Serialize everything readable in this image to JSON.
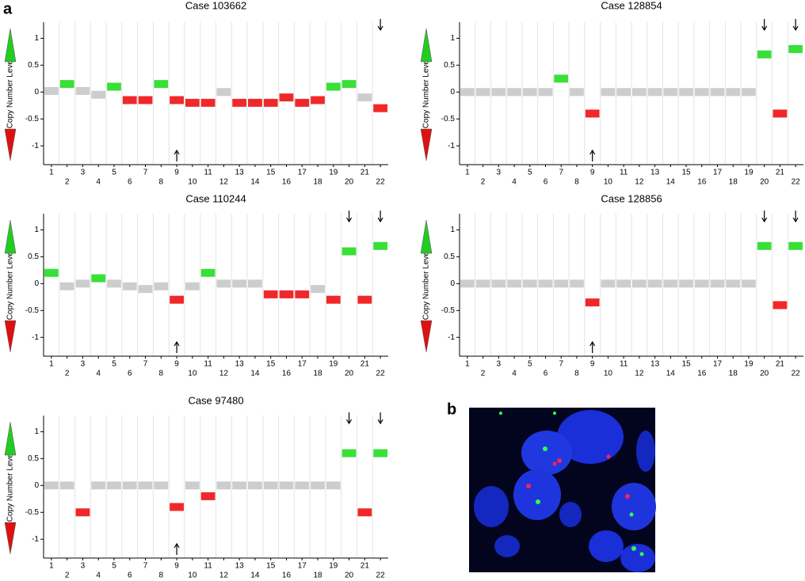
{
  "labels": [
    "a",
    "b"
  ],
  "chart_data": [
    {
      "type": "copy_number",
      "title": "Case 103662",
      "ylabel": "Copy Number Level",
      "categories": [
        "1",
        "2",
        "3",
        "4",
        "5",
        "6",
        "7",
        "8",
        "9",
        "10",
        "11",
        "12",
        "13",
        "14",
        "15",
        "16",
        "17",
        "18",
        "19",
        "20",
        "21",
        "22"
      ],
      "values": [
        0.02,
        0.15,
        0.02,
        -0.05,
        0.1,
        -0.15,
        -0.15,
        0.15,
        -0.15,
        -0.2,
        -0.2,
        0,
        -0.2,
        -0.2,
        -0.2,
        -0.1,
        -0.2,
        -0.15,
        0.1,
        0.15,
        -0.1,
        -0.3
      ],
      "colors": [
        "#c8c8c8",
        "#22dd22",
        "#c8c8c8",
        "#c8c8c8",
        "#22dd22",
        "#ee1111",
        "#ee1111",
        "#22dd22",
        "#ee1111",
        "#ee1111",
        "#ee1111",
        "#c8c8c8",
        "#ee1111",
        "#ee1111",
        "#ee1111",
        "#ee1111",
        "#ee1111",
        "#ee1111",
        "#22dd22",
        "#22dd22",
        "#c8c8c8",
        "#ee1111"
      ],
      "ylim": [
        -1.35,
        1.3
      ],
      "yticks": [
        1,
        0.5,
        0,
        -0.5,
        -1
      ]
    },
    {
      "type": "copy_number",
      "title": "Case 128854",
      "ylabel": "Copy Number Level",
      "categories": [
        "1",
        "2",
        "3",
        "4",
        "5",
        "6",
        "7",
        "8",
        "9",
        "10",
        "11",
        "12",
        "13",
        "14",
        "15",
        "16",
        "17",
        "18",
        "19",
        "20",
        "21",
        "22"
      ],
      "values": [
        0,
        0,
        0,
        0,
        0,
        0,
        0.25,
        0,
        -0.4,
        0,
        0,
        0,
        0,
        0,
        0,
        0,
        0,
        0,
        0,
        0.7,
        -0.4,
        0.8
      ],
      "colors": [
        "#c8c8c8",
        "#c8c8c8",
        "#c8c8c8",
        "#c8c8c8",
        "#c8c8c8",
        "#c8c8c8",
        "#22dd22",
        "#c8c8c8",
        "#ee1111",
        "#c8c8c8",
        "#c8c8c8",
        "#c8c8c8",
        "#c8c8c8",
        "#c8c8c8",
        "#c8c8c8",
        "#c8c8c8",
        "#c8c8c8",
        "#c8c8c8",
        "#c8c8c8",
        "#22dd22",
        "#ee1111",
        "#22dd22"
      ],
      "ylim": [
        -1.35,
        1.3
      ],
      "yticks": [
        1,
        0.5,
        0,
        -0.5,
        -1
      ]
    },
    {
      "type": "copy_number",
      "title": "Case 110244",
      "ylabel": "Copy Number Level",
      "categories": [
        "1",
        "2",
        "3",
        "4",
        "5",
        "6",
        "7",
        "8",
        "9",
        "10",
        "11",
        "12",
        "13",
        "14",
        "15",
        "16",
        "17",
        "18",
        "19",
        "20",
        "21",
        "22"
      ],
      "values": [
        0.2,
        -0.05,
        0,
        0.1,
        0,
        -0.05,
        -0.1,
        -0.05,
        -0.3,
        -0.05,
        0.2,
        0,
        0,
        0,
        -0.2,
        -0.2,
        -0.2,
        -0.1,
        -0.3,
        0.6,
        -0.3,
        0.7
      ],
      "colors": [
        "#22dd22",
        "#c8c8c8",
        "#c8c8c8",
        "#22dd22",
        "#c8c8c8",
        "#c8c8c8",
        "#c8c8c8",
        "#c8c8c8",
        "#ee1111",
        "#c8c8c8",
        "#22dd22",
        "#c8c8c8",
        "#c8c8c8",
        "#c8c8c8",
        "#ee1111",
        "#ee1111",
        "#ee1111",
        "#c8c8c8",
        "#ee1111",
        "#22dd22",
        "#ee1111",
        "#22dd22"
      ],
      "ylim": [
        -1.35,
        1.3
      ],
      "yticks": [
        1,
        0.5,
        0,
        -0.5,
        -1
      ]
    },
    {
      "type": "copy_number",
      "title": "Case 128856",
      "ylabel": "Copy Number Level",
      "categories": [
        "1",
        "2",
        "3",
        "4",
        "5",
        "6",
        "7",
        "8",
        "9",
        "10",
        "11",
        "12",
        "13",
        "14",
        "15",
        "16",
        "17",
        "18",
        "19",
        "20",
        "21",
        "22"
      ],
      "values": [
        0,
        0,
        0,
        0,
        0,
        0,
        0,
        0,
        -0.35,
        0,
        0,
        0,
        0,
        0,
        0,
        0,
        0,
        0,
        0,
        0.7,
        -0.4,
        0.7
      ],
      "colors": [
        "#c8c8c8",
        "#c8c8c8",
        "#c8c8c8",
        "#c8c8c8",
        "#c8c8c8",
        "#c8c8c8",
        "#c8c8c8",
        "#c8c8c8",
        "#ee1111",
        "#c8c8c8",
        "#c8c8c8",
        "#c8c8c8",
        "#c8c8c8",
        "#c8c8c8",
        "#c8c8c8",
        "#c8c8c8",
        "#c8c8c8",
        "#c8c8c8",
        "#c8c8c8",
        "#22dd22",
        "#ee1111",
        "#22dd22"
      ],
      "ylim": [
        -1.35,
        1.3
      ],
      "yticks": [
        1,
        0.5,
        0,
        -0.5,
        -1
      ]
    },
    {
      "type": "copy_number",
      "title": "Case 97480",
      "ylabel": "Copy Number Level",
      "categories": [
        "1",
        "2",
        "3",
        "4",
        "5",
        "6",
        "7",
        "8",
        "9",
        "10",
        "11",
        "12",
        "13",
        "14",
        "15",
        "16",
        "17",
        "18",
        "19",
        "20",
        "21",
        "22"
      ],
      "values": [
        0,
        0,
        -0.5,
        0,
        0,
        0,
        0,
        0,
        -0.4,
        0,
        -0.2,
        0,
        0,
        0,
        0,
        0,
        0,
        0,
        0,
        0.6,
        -0.5,
        0.6
      ],
      "colors": [
        "#c8c8c8",
        "#c8c8c8",
        "#ee1111",
        "#c8c8c8",
        "#c8c8c8",
        "#c8c8c8",
        "#c8c8c8",
        "#c8c8c8",
        "#ee1111",
        "#c8c8c8",
        "#ee1111",
        "#c8c8c8",
        "#c8c8c8",
        "#c8c8c8",
        "#c8c8c8",
        "#c8c8c8",
        "#c8c8c8",
        "#c8c8c8",
        "#c8c8c8",
        "#22dd22",
        "#ee1111",
        "#22dd22"
      ],
      "ylim": [
        -1.35,
        1.3
      ],
      "yticks": [
        1,
        0.5,
        0,
        -0.5,
        -1
      ]
    }
  ]
}
